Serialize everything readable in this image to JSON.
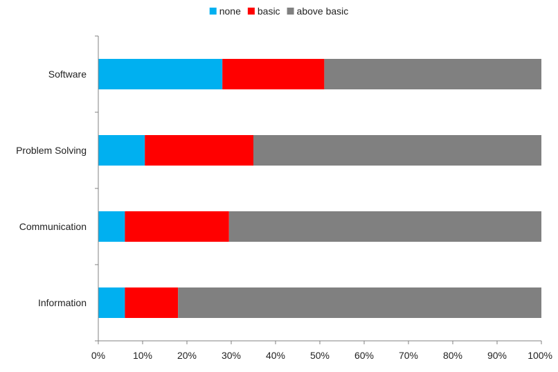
{
  "chart_data": {
    "type": "bar",
    "orientation": "horizontal",
    "stacked": "percent",
    "categories": [
      "Software",
      "Problem Solving",
      "Communication",
      "Information"
    ],
    "series": [
      {
        "name": "none",
        "color": "#00B0F0",
        "values": [
          28,
          10.5,
          6,
          6
        ]
      },
      {
        "name": "basic",
        "color": "#FF0000",
        "values": [
          23,
          24.5,
          23.5,
          12
        ]
      },
      {
        "name": "above basic",
        "color": "#808080",
        "values": [
          49,
          65,
          70.5,
          82
        ]
      }
    ],
    "xlim": [
      0,
      100
    ],
    "x_ticks": [
      "0%",
      "10%",
      "20%",
      "30%",
      "40%",
      "50%",
      "60%",
      "70%",
      "80%",
      "90%",
      "100%"
    ],
    "legend": {
      "position": "top-center"
    },
    "grid": false
  }
}
